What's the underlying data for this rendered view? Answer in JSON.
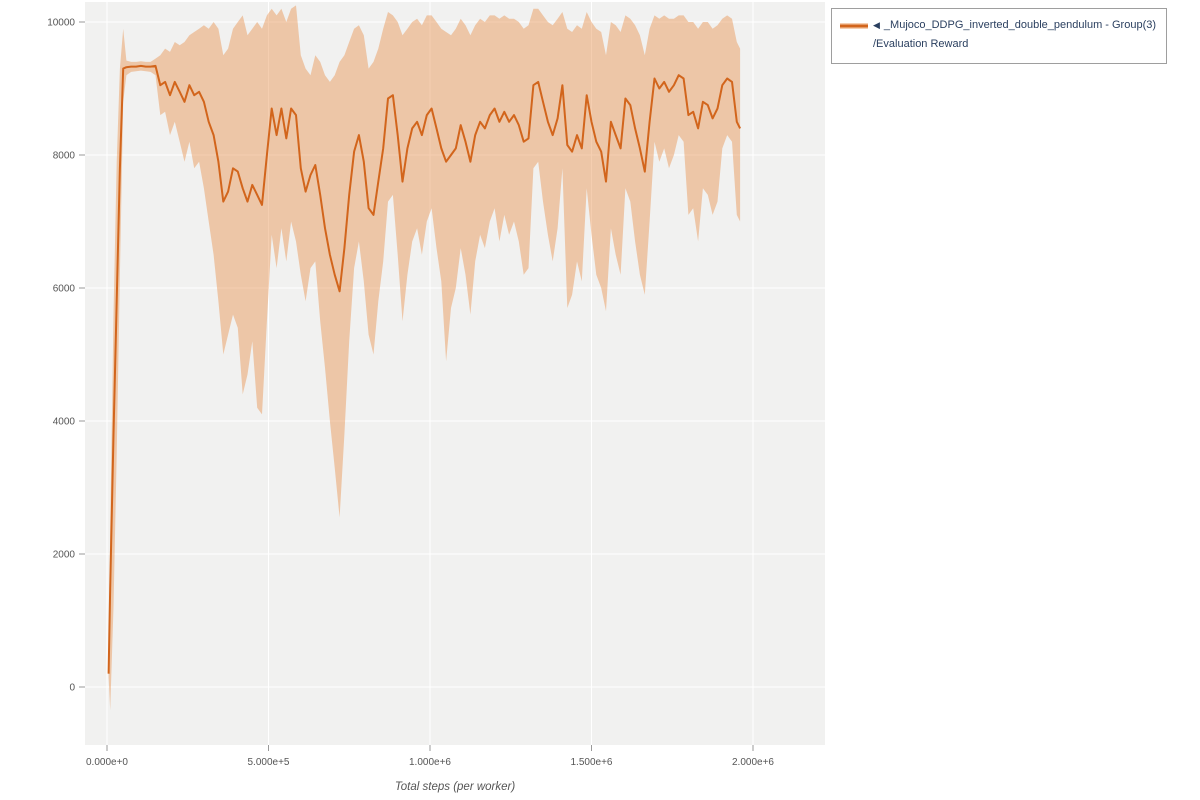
{
  "page": {
    "background": "#ffffff"
  },
  "legend": {
    "marker": "◀",
    "series_label": "_Mujoco_DDPG_inverted_double_pendulum - Group(3)",
    "metric_label": "/Evaluation Reward"
  },
  "chart_data": {
    "type": "line",
    "title": "",
    "xlabel": "Total steps (per worker)",
    "ylabel": "",
    "legend_position": "top-right-outside",
    "grid": true,
    "plot_bg": "#f1f1f0",
    "grid_color": "#ffffff",
    "tick_color": "#999999",
    "tick_label_color": "#555555",
    "line_color": "#d2651c",
    "band_color": "#e78b42",
    "band_opacity": 0.42,
    "x_range": [
      -68113,
      2222917
    ],
    "y_range": [
      -872,
      10301
    ],
    "x_tick_values": [
      0,
      500000,
      1000000,
      1500000,
      2000000
    ],
    "x_tick_labels": [
      "0.000e+0",
      "5.000e+5",
      "1.000e+6",
      "1.500e+6",
      "2.000e+6"
    ],
    "y_tick_values": [
      0,
      2000,
      4000,
      6000,
      8000,
      10000
    ],
    "y_tick_labels": [
      "0",
      "2000",
      "4000",
      "6000",
      "8000",
      "10000"
    ],
    "series": [
      {
        "name": "_Mujoco_DDPG_inverted_double_pendulum - Group(3) /Evaluation Reward",
        "x": [
          5000,
          10000,
          20000,
          30000,
          40000,
          50000,
          60000,
          75000,
          90000,
          105000,
          120000,
          135000,
          150000,
          165000,
          180000,
          195000,
          210000,
          225000,
          240000,
          255000,
          270000,
          285000,
          300000,
          315000,
          330000,
          345000,
          360000,
          375000,
          390000,
          405000,
          420000,
          435000,
          450000,
          465000,
          480000,
          495000,
          510000,
          525000,
          540000,
          555000,
          570000,
          585000,
          600000,
          615000,
          630000,
          645000,
          660000,
          675000,
          690000,
          705000,
          720000,
          735000,
          750000,
          765000,
          780000,
          795000,
          810000,
          825000,
          840000,
          855000,
          870000,
          885000,
          900000,
          915000,
          930000,
          945000,
          960000,
          975000,
          990000,
          1005000,
          1020000,
          1035000,
          1050000,
          1065000,
          1080000,
          1095000,
          1110000,
          1125000,
          1140000,
          1155000,
          1170000,
          1185000,
          1200000,
          1215000,
          1230000,
          1245000,
          1260000,
          1275000,
          1290000,
          1305000,
          1320000,
          1335000,
          1350000,
          1365000,
          1380000,
          1395000,
          1410000,
          1425000,
          1440000,
          1455000,
          1470000,
          1485000,
          1500000,
          1515000,
          1530000,
          1545000,
          1560000,
          1575000,
          1590000,
          1605000,
          1620000,
          1635000,
          1650000,
          1665000,
          1680000,
          1695000,
          1710000,
          1725000,
          1740000,
          1755000,
          1770000,
          1785000,
          1800000,
          1815000,
          1830000,
          1845000,
          1860000,
          1875000,
          1890000,
          1905000,
          1920000,
          1935000,
          1950000,
          1960000
        ],
        "mean": [
          200,
          1500,
          3800,
          5800,
          7800,
          9300,
          9320,
          9330,
          9330,
          9340,
          9330,
          9330,
          9340,
          9050,
          9100,
          8900,
          9100,
          8950,
          8800,
          9050,
          8900,
          8950,
          8800,
          8500,
          8300,
          7900,
          7300,
          7450,
          7800,
          7750,
          7500,
          7300,
          7550,
          7400,
          7250,
          8000,
          8700,
          8300,
          8700,
          8250,
          8700,
          8600,
          7800,
          7450,
          7700,
          7850,
          7400,
          6900,
          6500,
          6200,
          5950,
          6600,
          7400,
          8050,
          8300,
          7900,
          7200,
          7100,
          7600,
          8100,
          8850,
          8900,
          8300,
          7600,
          8100,
          8400,
          8500,
          8300,
          8600,
          8700,
          8400,
          8100,
          7900,
          8000,
          8100,
          8450,
          8200,
          7900,
          8300,
          8500,
          8400,
          8600,
          8700,
          8500,
          8650,
          8500,
          8600,
          8450,
          8200,
          8250,
          9050,
          9100,
          8800,
          8500,
          8300,
          8550,
          9050,
          8150,
          8050,
          8300,
          8100,
          8900,
          8500,
          8200,
          8050,
          7600,
          8500,
          8300,
          8100,
          8850,
          8750,
          8400,
          8100,
          7750,
          8500,
          9150,
          9000,
          9100,
          8950,
          9050,
          9200,
          9150,
          8600,
          8650,
          8400,
          8800,
          8750,
          8550,
          8700,
          9050,
          9150,
          9100,
          8500,
          8400
        ],
        "lower": [
          150,
          -350,
          1200,
          3500,
          6200,
          8800,
          9200,
          9250,
          9260,
          9270,
          9260,
          9250,
          9200,
          8600,
          8650,
          8300,
          8500,
          8200,
          7900,
          8200,
          7800,
          7900,
          7500,
          7000,
          6500,
          5800,
          5000,
          5300,
          5600,
          5400,
          4400,
          4700,
          5200,
          4200,
          4100,
          5500,
          6800,
          6300,
          6900,
          6400,
          7000,
          6700,
          6200,
          5800,
          6300,
          6400,
          5500,
          4800,
          4000,
          3300,
          2550,
          3800,
          5200,
          6300,
          6700,
          6100,
          5300,
          5000,
          5800,
          6400,
          7300,
          7400,
          6500,
          5500,
          6200,
          6700,
          6900,
          6500,
          7000,
          7200,
          6600,
          6100,
          4900,
          5700,
          6000,
          6600,
          6200,
          5600,
          6400,
          6800,
          6600,
          7000,
          7200,
          6700,
          7100,
          6800,
          7000,
          6700,
          6200,
          6300,
          7800,
          7900,
          7300,
          6800,
          6400,
          6900,
          7800,
          5700,
          5900,
          6400,
          6100,
          7500,
          6800,
          6200,
          6000,
          5650,
          6900,
          6500,
          6200,
          7500,
          7300,
          6700,
          6200,
          5900,
          7000,
          8200,
          7900,
          8100,
          7800,
          8000,
          8300,
          8200,
          7100,
          7200,
          6700,
          7500,
          7400,
          7100,
          7300,
          8100,
          8300,
          8200,
          7100,
          7000
        ],
        "upper": [
          260,
          2400,
          5600,
          7900,
          9300,
          9900,
          9420,
          9400,
          9400,
          9410,
          9400,
          9400,
          9450,
          9500,
          9600,
          9550,
          9700,
          9650,
          9700,
          9800,
          9850,
          9900,
          9950,
          9900,
          10000,
          9900,
          9500,
          9600,
          9900,
          10000,
          10100,
          9800,
          9900,
          10000,
          9900,
          10100,
          10200,
          10100,
          10200,
          10000,
          10200,
          10250,
          9500,
          9300,
          9200,
          9500,
          9400,
          9200,
          9100,
          9200,
          9400,
          9500,
          9700,
          9900,
          9950,
          9800,
          9300,
          9400,
          9600,
          9900,
          10150,
          10100,
          10000,
          9800,
          9900,
          10000,
          10050,
          9950,
          10100,
          10100,
          10000,
          9900,
          9850,
          9800,
          9900,
          10050,
          9950,
          9800,
          9950,
          10050,
          10000,
          10100,
          10100,
          10050,
          10100,
          10050,
          10050,
          10000,
          9900,
          9950,
          10200,
          10200,
          10100,
          10000,
          9950,
          10050,
          10150,
          9900,
          9850,
          9950,
          9900,
          10150,
          10000,
          9900,
          9850,
          9500,
          10000,
          9950,
          9850,
          10100,
          10050,
          9950,
          9800,
          9500,
          9900,
          10100,
          10050,
          10100,
          10050,
          10050,
          10100,
          10100,
          10000,
          10000,
          9900,
          10000,
          10000,
          9900,
          9950,
          10050,
          10100,
          10050,
          9700,
          9600
        ]
      }
    ]
  }
}
